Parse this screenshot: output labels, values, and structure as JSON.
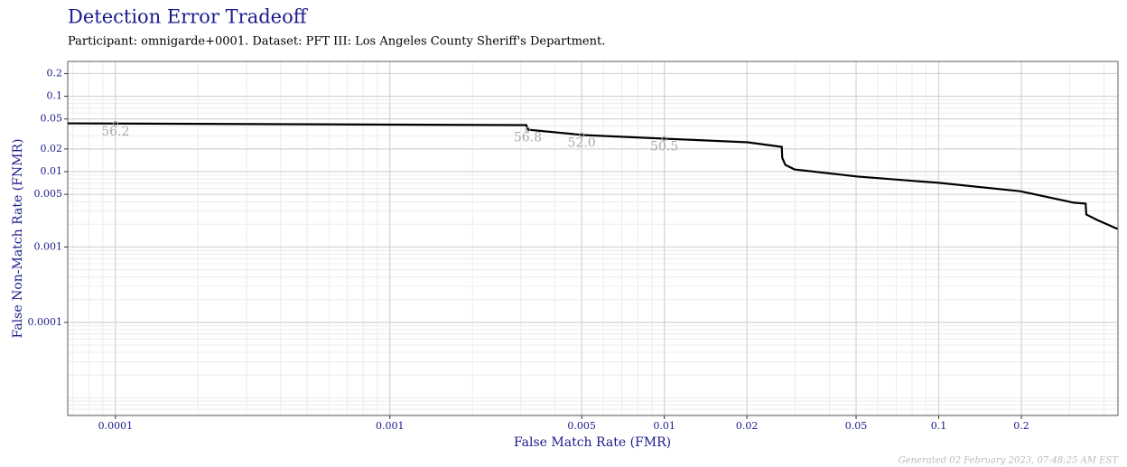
{
  "chart_data": {
    "type": "line",
    "title": "Detection Error Tradeoff",
    "subtitle": "Participant: omnigarde+0001. Dataset: PFT III: Los Angeles County Sheriff's Department.",
    "x_label": "False Match Rate (FMR)",
    "y_label": "False Non-Match Rate (FNMR)",
    "footer": "Generated 02 February 2023, 07:48:25 AM EST",
    "x_log": true,
    "y_log": true,
    "grid": true,
    "color": "#000000",
    "xlim": [
      6.7e-05,
      0.45
    ],
    "ylim": [
      5.8e-06,
      0.29
    ],
    "xticks": [
      0.0001,
      0.001,
      0.005,
      0.01,
      0.02,
      0.05,
      0.1,
      0.2
    ],
    "yticks": [
      0.2,
      0.1,
      0.05,
      0.02,
      0.01,
      0.005,
      0.001,
      0.0001
    ],
    "x": [
      6.7e-05,
      0.00314,
      0.00319,
      0.00506,
      0.01,
      0.0201,
      0.0268,
      0.0269,
      0.0276,
      0.0298,
      0.0506,
      0.1,
      0.198,
      0.311,
      0.343,
      0.345,
      0.377,
      0.448
    ],
    "values": [
      0.0437,
      0.0414,
      0.036,
      0.0306,
      0.0274,
      0.0245,
      0.0213,
      0.0153,
      0.0123,
      0.0107,
      0.0086,
      0.0071,
      0.0055,
      0.00387,
      0.00376,
      0.0027,
      0.00229,
      0.00174
    ],
    "annotations": [
      {
        "text": "56.2",
        "x": 0.0001,
        "y": 0.0433
      },
      {
        "text": "56.8",
        "x": 0.00318,
        "y": 0.036
      },
      {
        "text": "52.0",
        "x": 0.005,
        "y": 0.0306
      },
      {
        "text": "50.5",
        "x": 0.01,
        "y": 0.0274
      }
    ]
  }
}
